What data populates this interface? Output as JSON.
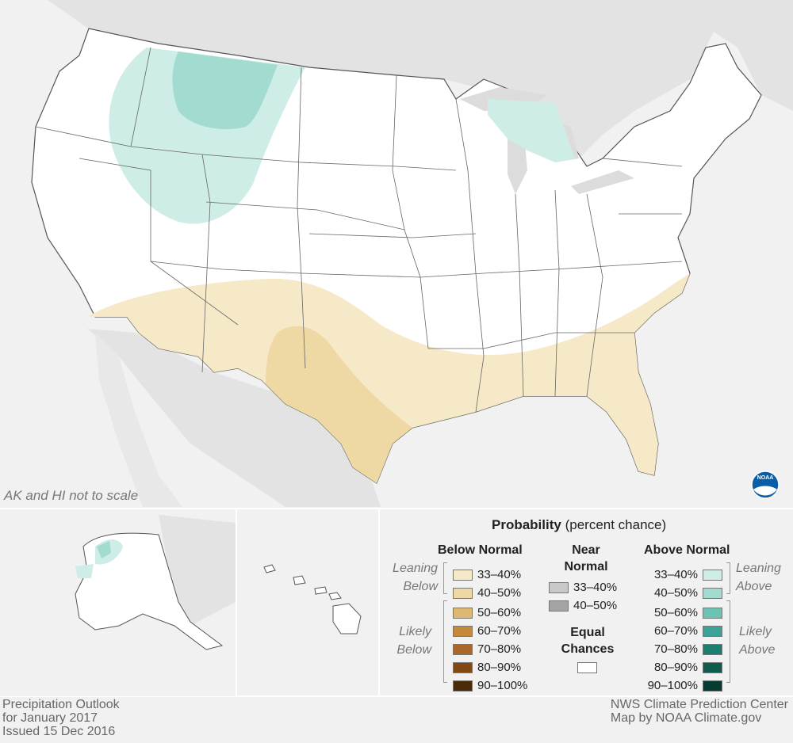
{
  "map_note": "AK and HI not to scale",
  "legend": {
    "title_bold": "Probability",
    "title_rest": " (percent chance)",
    "below_normal": {
      "heading": "Below Normal",
      "leaning_label": [
        "Leaning",
        "Below"
      ],
      "likely_label": [
        "Likely",
        "Below"
      ],
      "items": [
        {
          "label": "33–40%",
          "color": "#f5e9c8"
        },
        {
          "label": "40–50%",
          "color": "#eed9a4"
        },
        {
          "label": "50–60%",
          "color": "#dcb872"
        },
        {
          "label": "60–70%",
          "color": "#c48a3c"
        },
        {
          "label": "70–80%",
          "color": "#a9672b"
        },
        {
          "label": "80–90%",
          "color": "#7f4814"
        },
        {
          "label": "90–100%",
          "color": "#4a2a08"
        }
      ]
    },
    "near_normal": {
      "heading_line1": "Near",
      "heading_line2": "Normal",
      "items": [
        {
          "label": "33–40%",
          "color": "#c8c8c8"
        },
        {
          "label": "40–50%",
          "color": "#a4a4a4"
        }
      ]
    },
    "equal_chances": {
      "heading_line1": "Equal",
      "heading_line2": "Chances",
      "color": "#ffffff"
    },
    "above_normal": {
      "heading": "Above Normal",
      "leaning_label": [
        "Leaning",
        "Above"
      ],
      "likely_label": [
        "Likely",
        "Above"
      ],
      "items": [
        {
          "label": "33–40%",
          "color": "#cdede6"
        },
        {
          "label": "40–50%",
          "color": "#a2dbd0"
        },
        {
          "label": "50–60%",
          "color": "#6cc2b3"
        },
        {
          "label": "60–70%",
          "color": "#3aa296"
        },
        {
          "label": "70–80%",
          "color": "#1c7e71"
        },
        {
          "label": "80–90%",
          "color": "#0f5c4f"
        },
        {
          "label": "90–100%",
          "color": "#053b31"
        }
      ]
    }
  },
  "footer": {
    "left": [
      "Precipitation Outlook",
      "for January 2017",
      "Issued 15 Dec 2016"
    ],
    "right": [
      "NWS Climate Prediction Center",
      "Map by NOAA Climate.gov"
    ]
  },
  "noaa_logo_text": "NOAA",
  "map_colors": {
    "land": "#ffffff",
    "background": "#f1f1f1",
    "neighbor": "#e3e3e3",
    "lakes": "#dcdcdc",
    "border": "#555555"
  }
}
